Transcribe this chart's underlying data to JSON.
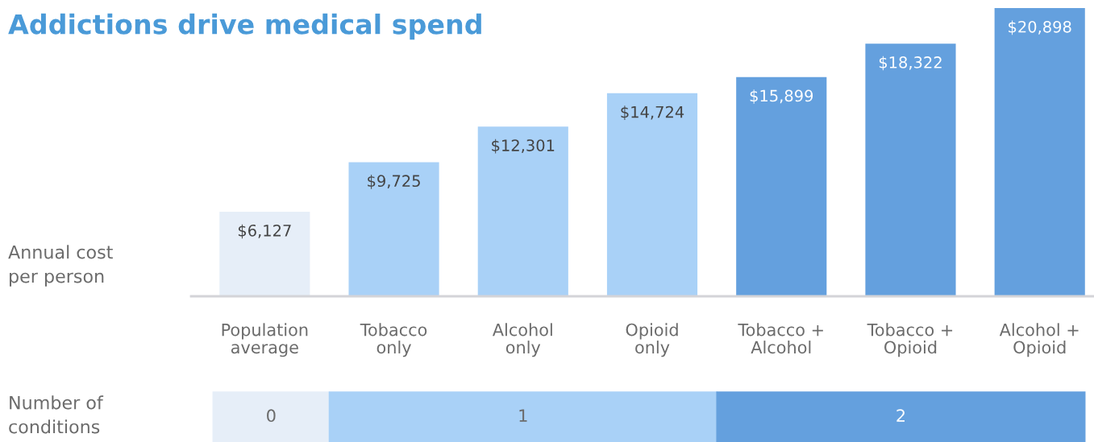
{
  "chart_data": {
    "type": "bar",
    "title": "Addictions drive medical spend",
    "ylabel": "Annual cost\nper person",
    "categories": [
      "Population\naverage",
      "Tobacco\nonly",
      "Alcohol\nonly",
      "Opioid\nonly",
      "Tobacco +\nAlcohol",
      "Tobacco +\nOpioid",
      "Alcohol +\nOpioid"
    ],
    "values": [
      6127,
      9725,
      12301,
      14724,
      15899,
      18322,
      20898
    ],
    "value_labels": [
      "$6,127",
      "$9,725",
      "$12,301",
      "$14,724",
      "$15,899",
      "$18,322",
      "$20,898"
    ],
    "colors": [
      "#e6eef8",
      "#a9d1f7",
      "#a9d1f7",
      "#a9d1f7",
      "#64a0de",
      "#64a0de",
      "#64a0de"
    ],
    "annotations": [
      "Number of\nconditions",
      "0",
      "1",
      "2"
    ],
    "grid": false,
    "legend": false
  }
}
